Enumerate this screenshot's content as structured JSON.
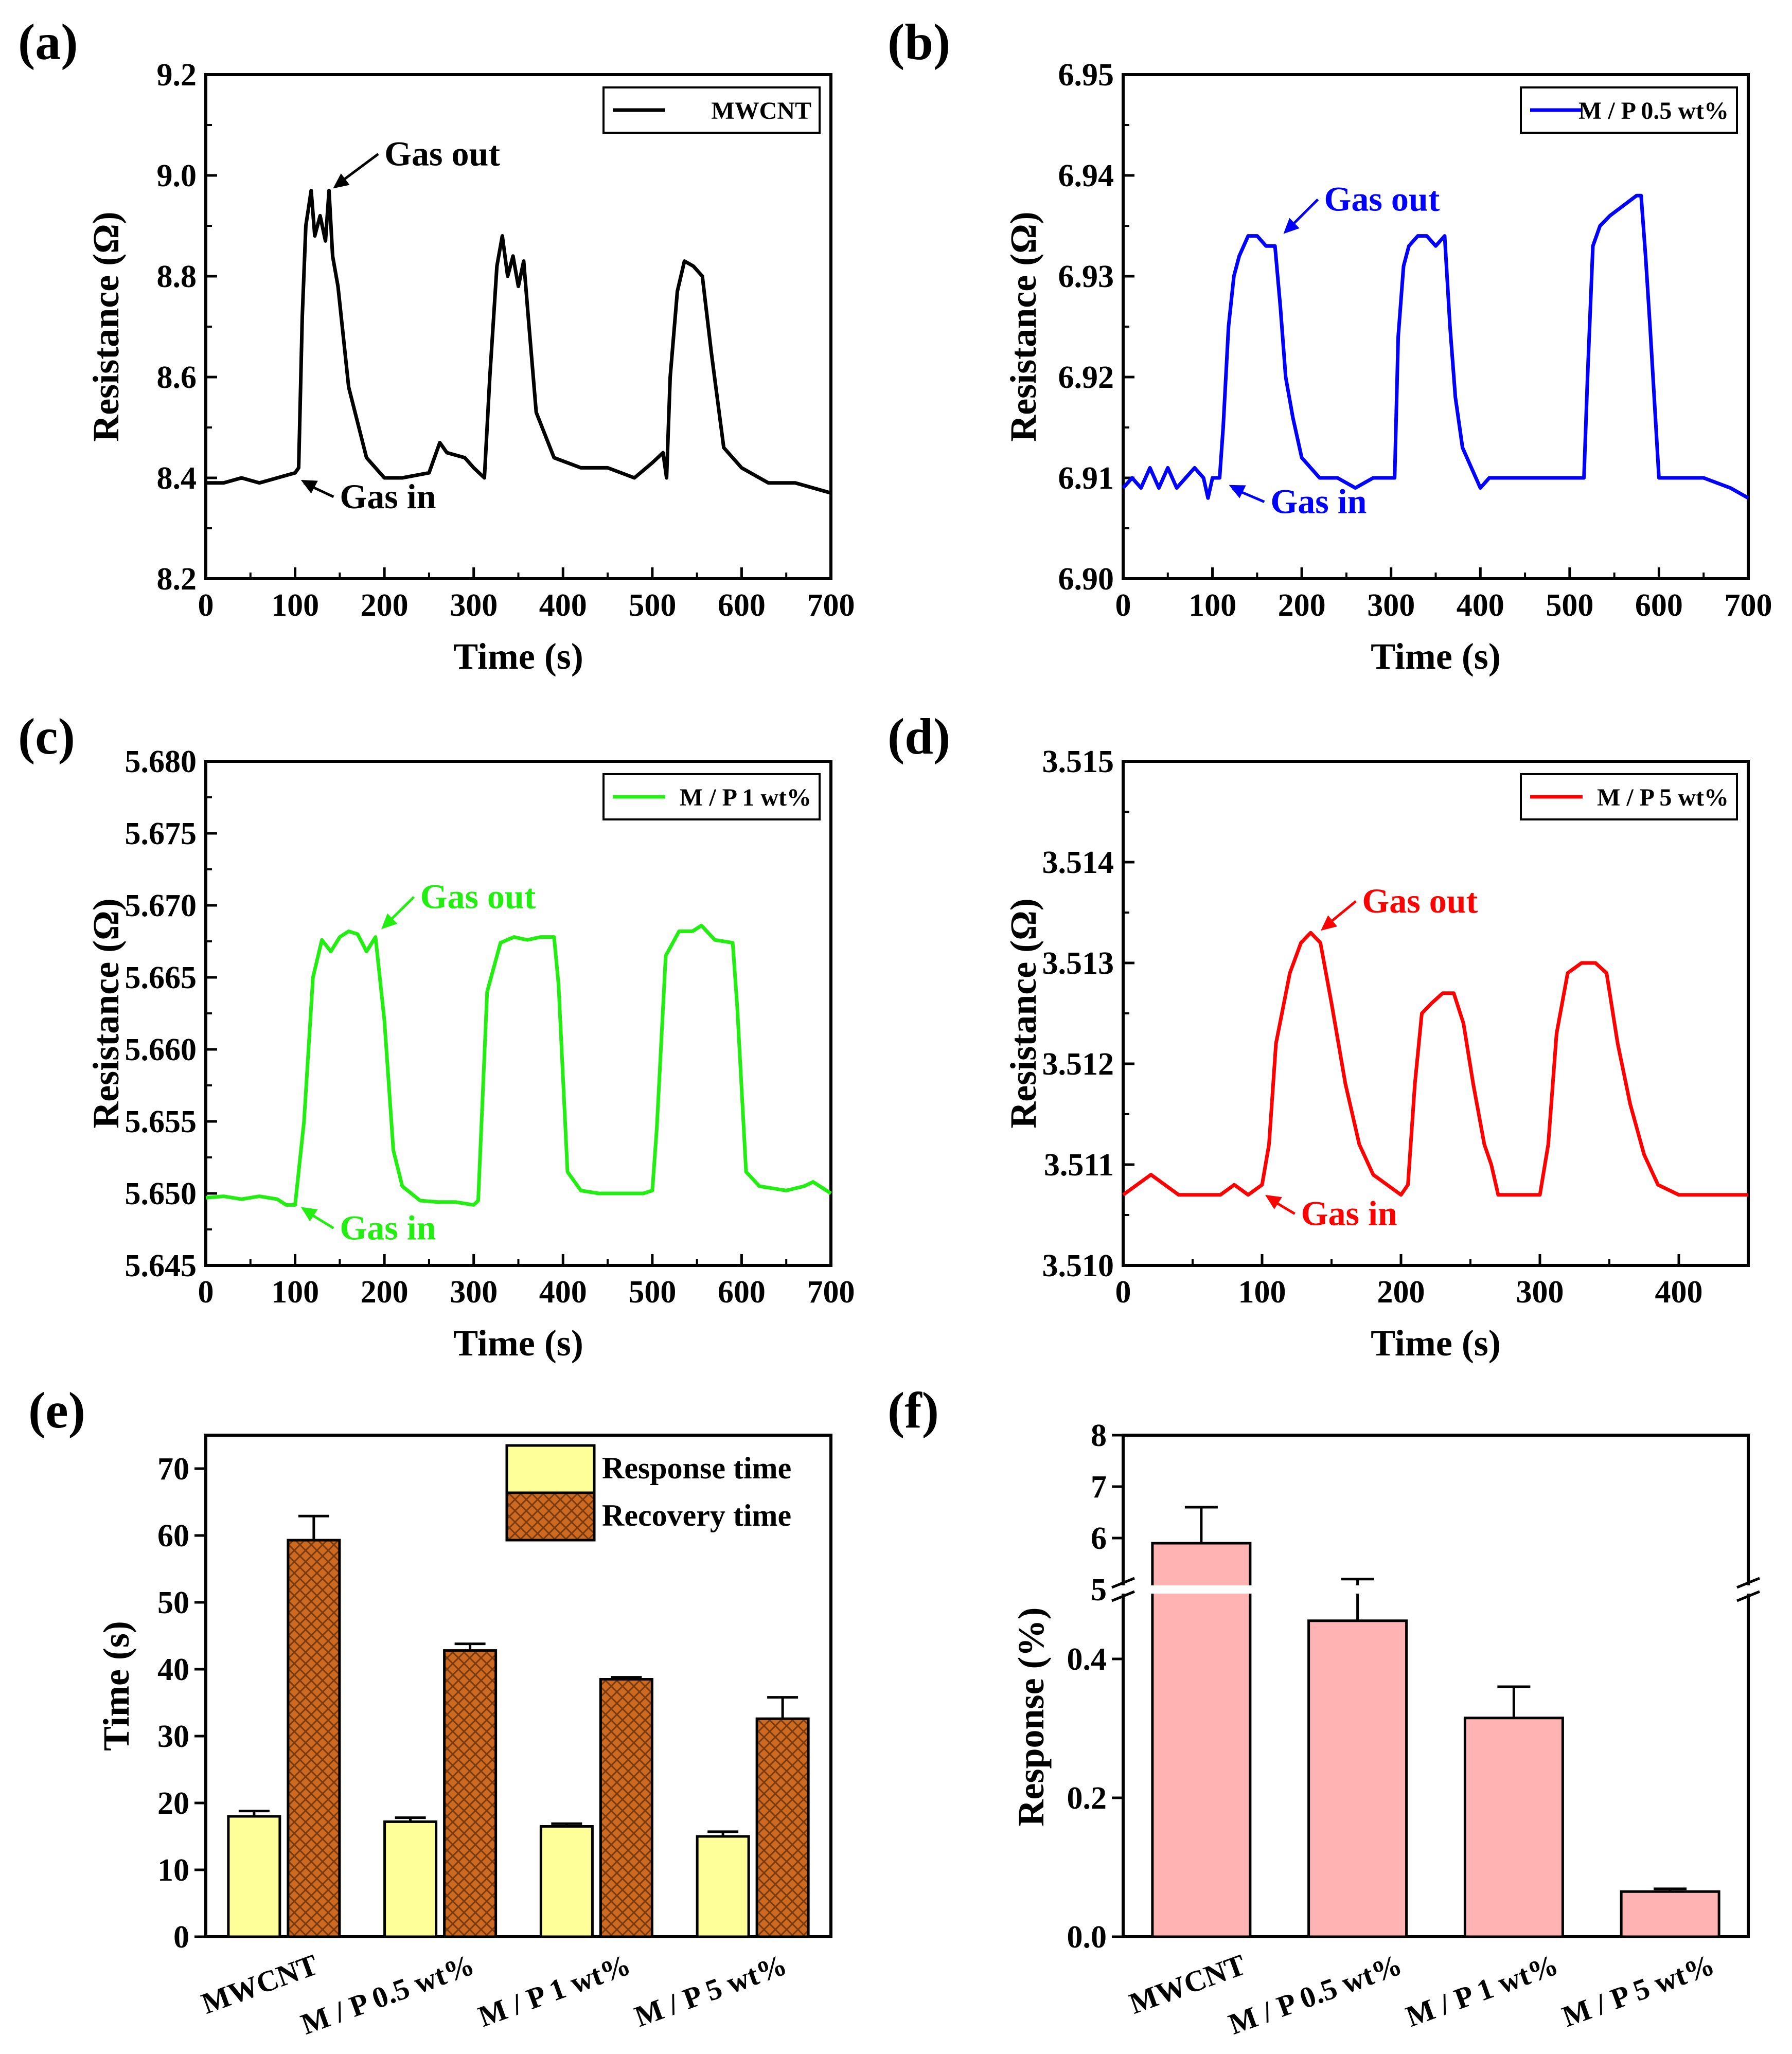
{
  "chart_data": [
    {
      "panel": "(a)",
      "type": "line",
      "xlabel": "Time (s)",
      "ylabel": "Resistance (Ω)",
      "xlim": [
        0,
        700
      ],
      "ylim": [
        8.2,
        9.2
      ],
      "xticks": [
        "0",
        "100",
        "200",
        "300",
        "400",
        "500",
        "600",
        "700"
      ],
      "yticks": [
        "8.2",
        "8.4",
        "8.6",
        "8.8",
        "9.0",
        "9.2"
      ],
      "legend": "top-right",
      "color": "#000000",
      "series": [
        {
          "name": "MWCNT",
          "x": [
            0,
            20,
            40,
            60,
            80,
            100,
            104,
            108,
            112,
            118,
            122,
            128,
            134,
            138,
            142,
            148,
            160,
            180,
            200,
            220,
            250,
            262,
            270,
            290,
            300,
            312,
            318,
            326,
            332,
            338,
            344,
            350,
            356,
            362,
            370,
            390,
            420,
            450,
            480,
            500,
            512,
            516,
            520,
            528,
            536,
            546,
            556,
            566,
            580,
            600,
            630,
            660,
            700
          ],
          "y": [
            8.39,
            8.39,
            8.4,
            8.39,
            8.4,
            8.41,
            8.42,
            8.72,
            8.9,
            8.97,
            8.88,
            8.92,
            8.87,
            8.97,
            8.84,
            8.78,
            8.58,
            8.44,
            8.4,
            8.4,
            8.41,
            8.47,
            8.45,
            8.44,
            8.42,
            8.4,
            8.6,
            8.82,
            8.88,
            8.8,
            8.84,
            8.78,
            8.83,
            8.7,
            8.53,
            8.44,
            8.42,
            8.42,
            8.4,
            8.43,
            8.45,
            8.4,
            8.6,
            8.77,
            8.83,
            8.82,
            8.8,
            8.65,
            8.46,
            8.42,
            8.39,
            8.39,
            8.37
          ]
        }
      ],
      "annotations": [
        {
          "text": "Gas out",
          "x": 139,
          "y": 8.97,
          "tx": 200,
          "ty": 9.02
        },
        {
          "text": "Gas in",
          "x": 103,
          "y": 8.4,
          "tx": 150,
          "ty": 8.34
        }
      ]
    },
    {
      "panel": "(b)",
      "type": "line",
      "xlabel": "Time (s)",
      "ylabel": "Resistance (Ω)",
      "xlim": [
        0,
        700
      ],
      "ylim": [
        6.9,
        6.95
      ],
      "xticks": [
        "0",
        "100",
        "200",
        "300",
        "400",
        "500",
        "600",
        "700"
      ],
      "yticks": [
        "6.90",
        "6.91",
        "6.92",
        "6.93",
        "6.94",
        "6.95"
      ],
      "legend": "top-right",
      "color": "#0000ff",
      "series": [
        {
          "name": "M / P 0.5 wt%",
          "x": [
            0,
            10,
            20,
            30,
            40,
            50,
            60,
            70,
            80,
            90,
            95,
            100,
            108,
            112,
            118,
            124,
            130,
            140,
            150,
            160,
            170,
            176,
            182,
            190,
            200,
            210,
            220,
            240,
            260,
            280,
            300,
            304,
            308,
            314,
            320,
            330,
            340,
            350,
            360,
            366,
            372,
            380,
            390,
            400,
            410,
            430,
            460,
            490,
            510,
            516,
            520,
            526,
            534,
            545,
            560,
            575,
            580,
            585,
            590,
            600,
            620,
            650,
            680,
            700
          ],
          "y": [
            6.909,
            6.91,
            6.909,
            6.911,
            6.909,
            6.911,
            6.909,
            6.91,
            6.911,
            6.91,
            6.908,
            6.91,
            6.91,
            6.915,
            6.925,
            6.93,
            6.932,
            6.934,
            6.934,
            6.933,
            6.933,
            6.927,
            6.92,
            6.916,
            6.912,
            6.911,
            6.91,
            6.91,
            6.909,
            6.91,
            6.91,
            6.91,
            6.924,
            6.931,
            6.933,
            6.934,
            6.934,
            6.933,
            6.934,
            6.925,
            6.918,
            6.913,
            6.911,
            6.909,
            6.91,
            6.91,
            6.91,
            6.91,
            6.91,
            6.91,
            6.92,
            6.933,
            6.935,
            6.936,
            6.937,
            6.938,
            6.938,
            6.932,
            6.925,
            6.91,
            6.91,
            6.91,
            6.909,
            6.908
          ]
        }
      ],
      "annotations": [
        {
          "text": "Gas out",
          "x": 176,
          "y": 6.934,
          "tx": 225,
          "ty": 6.9365
        },
        {
          "text": "Gas in",
          "x": 115,
          "y": 6.9095,
          "tx": 165,
          "ty": 6.9065
        }
      ]
    },
    {
      "panel": "(c)",
      "type": "line",
      "xlabel": "Time (s)",
      "ylabel": "Resistance (Ω)",
      "xlim": [
        0,
        700
      ],
      "ylim": [
        5.645,
        5.68
      ],
      "xticks": [
        "0",
        "100",
        "200",
        "300",
        "400",
        "500",
        "600",
        "700"
      ],
      "yticks": [
        "5.645",
        "5.650",
        "5.655",
        "5.660",
        "5.665",
        "5.670",
        "5.675",
        "5.680"
      ],
      "legend": "top-right",
      "color": "#22ee11",
      "series": [
        {
          "name": "M / P 1 wt%",
          "x": [
            0,
            20,
            40,
            60,
            80,
            90,
            100,
            110,
            120,
            130,
            140,
            150,
            160,
            170,
            180,
            190,
            200,
            210,
            220,
            240,
            260,
            280,
            300,
            305,
            315,
            330,
            345,
            360,
            375,
            390,
            395,
            405,
            420,
            440,
            460,
            490,
            500,
            505,
            515,
            530,
            545,
            555,
            570,
            590,
            595,
            605,
            620,
            650,
            670,
            680,
            700
          ],
          "y": [
            5.6497,
            5.6498,
            5.6496,
            5.6498,
            5.6496,
            5.6492,
            5.6492,
            5.655,
            5.665,
            5.6676,
            5.6668,
            5.6678,
            5.6682,
            5.668,
            5.6668,
            5.6678,
            5.662,
            5.653,
            5.6505,
            5.6495,
            5.6494,
            5.6494,
            5.6492,
            5.6495,
            5.664,
            5.6674,
            5.6678,
            5.6676,
            5.6678,
            5.6678,
            5.6645,
            5.6515,
            5.6502,
            5.65,
            5.65,
            5.65,
            5.6502,
            5.6545,
            5.6665,
            5.6682,
            5.6682,
            5.6686,
            5.6676,
            5.6674,
            5.663,
            5.6515,
            5.6505,
            5.6502,
            5.6505,
            5.6508,
            5.65
          ]
        }
      ],
      "annotations": [
        {
          "text": "Gas out",
          "x": 193,
          "y": 5.6682,
          "tx": 240,
          "ty": 5.6698
        },
        {
          "text": "Gas in",
          "x": 103,
          "y": 5.6492,
          "tx": 150,
          "ty": 5.6468
        }
      ]
    },
    {
      "panel": "(d)",
      "type": "line",
      "xlabel": "Time (s)",
      "ylabel": "Resistance (Ω)",
      "xlim": [
        0,
        450
      ],
      "ylim": [
        3.51,
        3.515
      ],
      "xticks": [
        "0",
        "100",
        "200",
        "300",
        "400"
      ],
      "yticks": [
        "3.510",
        "3.511",
        "3.512",
        "3.513",
        "3.514",
        "3.515"
      ],
      "legend": "top-right",
      "color": "#ff0000",
      "series": [
        {
          "name": "M / P 5 wt%",
          "x": [
            0,
            10,
            20,
            30,
            40,
            50,
            60,
            70,
            80,
            90,
            100,
            105,
            110,
            120,
            128,
            135,
            142,
            150,
            160,
            170,
            180,
            190,
            200,
            205,
            210,
            215,
            222,
            230,
            238,
            245,
            252,
            260,
            265,
            270,
            280,
            290,
            300,
            306,
            312,
            320,
            330,
            340,
            348,
            356,
            365,
            375,
            385,
            400,
            420,
            440,
            450
          ],
          "y": [
            3.5107,
            3.5108,
            3.5109,
            3.5108,
            3.5107,
            3.5107,
            3.5107,
            3.5107,
            3.5108,
            3.5107,
            3.5108,
            3.5112,
            3.5122,
            3.5129,
            3.5132,
            3.5133,
            3.5132,
            3.5126,
            3.5118,
            3.5112,
            3.5109,
            3.5108,
            3.5107,
            3.5108,
            3.5118,
            3.5125,
            3.5126,
            3.5127,
            3.5127,
            3.5124,
            3.5118,
            3.5112,
            3.511,
            3.5107,
            3.5107,
            3.5107,
            3.5107,
            3.5112,
            3.5123,
            3.5129,
            3.513,
            3.513,
            3.5129,
            3.5122,
            3.5116,
            3.5111,
            3.5108,
            3.5107,
            3.5107,
            3.5107,
            3.5107
          ]
        }
      ],
      "annotations": [
        {
          "text": "Gas out",
          "x": 140,
          "y": 3.5133,
          "tx": 172,
          "ty": 3.5135
        },
        {
          "text": "Gas in",
          "x": 100,
          "y": 3.51072,
          "tx": 128,
          "ty": 3.5104
        }
      ]
    },
    {
      "panel": "(e)",
      "type": "bar",
      "ylabel": "Time (s)",
      "ylim": [
        0,
        75
      ],
      "yticks": [
        "0",
        "10",
        "20",
        "30",
        "40",
        "50",
        "60",
        "70"
      ],
      "categories": [
        "MWCNT",
        "M / P 0.5 wt%",
        "M / P 1 wt%",
        "M / P 5 wt%"
      ],
      "legend": "top-right",
      "series": [
        {
          "name": "Response time",
          "values": [
            18,
            17.2,
            16.5,
            15
          ],
          "errors": [
            0.8,
            0.6,
            0.4,
            0.7
          ],
          "color": "#ffff99"
        },
        {
          "name": "Recovery time",
          "values": [
            59.3,
            42.8,
            38.5,
            32.6
          ],
          "errors": [
            3.6,
            1,
            0.3,
            3.2
          ],
          "color": "#cc6a22"
        }
      ]
    },
    {
      "panel": "(f)",
      "type": "bar",
      "ylabel": "Response (%)",
      "axis_break": {
        "lower": [
          0,
          0.5
        ],
        "upper": [
          5,
          8
        ]
      },
      "yticks_lower": [
        "0.0",
        "0.2",
        "0.4"
      ],
      "yticks_upper": [
        "5",
        "6",
        "7",
        "8"
      ],
      "categories": [
        "MWCNT",
        "M / P 0.5 wt%",
        "M / P 1 wt%",
        "M / P 5 wt%"
      ],
      "series": [
        {
          "values": [
            5.9,
            0.455,
            0.315,
            0.065
          ],
          "errors": [
            0.7,
            0.06,
            0.045,
            0.004
          ],
          "color": "#ffb3b3"
        }
      ]
    }
  ]
}
